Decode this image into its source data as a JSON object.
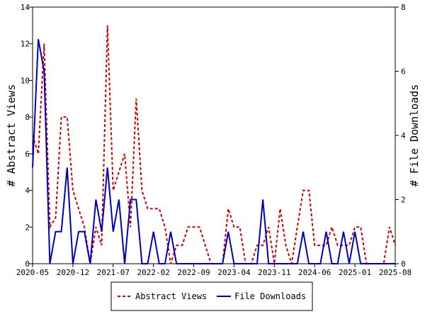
{
  "chart_data": {
    "type": "line",
    "xlabel": "",
    "ylabel": "# Abstract Views",
    "y2label": "# File Downloads",
    "xlim": [
      "2020-05",
      "2025-08"
    ],
    "xticks": [
      "2020-05",
      "2020-12",
      "2021-07",
      "2022-02",
      "2022-09",
      "2023-04",
      "2023-11",
      "2024-06",
      "2025-01",
      "2025-08"
    ],
    "ylim": [
      0,
      14
    ],
    "yticks": [
      0,
      2,
      4,
      6,
      8,
      10,
      12,
      14
    ],
    "y2lim": [
      0,
      8
    ],
    "y2ticks": [
      0,
      2,
      4,
      6,
      8
    ],
    "grid": false,
    "legend_position": "bottom",
    "series": [
      {
        "name": "Abstract Views",
        "axis": "left",
        "color": "#cc0000",
        "style": "dashed",
        "x": [
          "2020-05",
          "2020-06",
          "2020-07",
          "2020-08",
          "2020-09",
          "2020-10",
          "2020-11",
          "2020-12",
          "2021-01",
          "2021-02",
          "2021-03",
          "2021-04",
          "2021-05",
          "2021-06",
          "2021-07",
          "2021-08",
          "2021-09",
          "2021-10",
          "2021-11",
          "2021-12",
          "2022-01",
          "2022-02",
          "2022-03",
          "2022-04",
          "2022-05",
          "2022-06",
          "2022-07",
          "2022-08",
          "2022-09",
          "2022-10",
          "2022-11",
          "2022-12",
          "2023-01",
          "2023-02",
          "2023-03",
          "2023-04",
          "2023-05",
          "2023-06",
          "2023-07",
          "2023-08",
          "2023-09",
          "2023-10",
          "2023-11",
          "2023-12",
          "2024-01",
          "2024-02",
          "2024-03",
          "2024-04",
          "2024-05",
          "2024-06",
          "2024-07",
          "2024-08",
          "2024-09",
          "2024-10",
          "2024-11",
          "2024-12",
          "2025-01",
          "2025-02",
          "2025-03",
          "2025-04",
          "2025-05",
          "2025-06",
          "2025-07",
          "2025-08"
        ],
        "values": [
          7,
          6,
          12,
          2,
          2.5,
          8,
          8,
          4,
          3,
          2,
          0,
          2,
          1,
          13,
          4,
          5,
          6,
          2,
          9,
          4,
          3,
          3,
          3,
          2,
          0,
          1,
          1,
          2,
          2,
          2,
          1,
          0,
          0,
          0,
          3,
          2,
          2,
          0,
          0,
          1,
          1,
          2,
          0,
          3,
          1,
          0,
          2,
          4,
          4,
          1,
          1,
          1,
          2,
          1,
          1,
          1,
          2,
          2,
          0,
          0,
          0,
          0,
          2,
          1
        ]
      },
      {
        "name": "File Downloads",
        "axis": "right",
        "color": "#0000bb",
        "style": "solid",
        "x": [
          "2020-05",
          "2020-06",
          "2020-07",
          "2020-08",
          "2020-09",
          "2020-10",
          "2020-11",
          "2020-12",
          "2021-01",
          "2021-02",
          "2021-03",
          "2021-04",
          "2021-05",
          "2021-06",
          "2021-07",
          "2021-08",
          "2021-09",
          "2021-10",
          "2021-11",
          "2021-12",
          "2022-01",
          "2022-02",
          "2022-03",
          "2022-04",
          "2022-05",
          "2022-06",
          "2022-07",
          "2022-08",
          "2022-09",
          "2022-10",
          "2022-11",
          "2022-12",
          "2023-01",
          "2023-02",
          "2023-03",
          "2023-04",
          "2023-05",
          "2023-06",
          "2023-07",
          "2023-08",
          "2023-09",
          "2023-10",
          "2023-11",
          "2023-12",
          "2024-01",
          "2024-02",
          "2024-03",
          "2024-04",
          "2024-05",
          "2024-06",
          "2024-07",
          "2024-08",
          "2024-09",
          "2024-10",
          "2024-11",
          "2024-12",
          "2025-01",
          "2025-02",
          "2025-03",
          "2025-04",
          "2025-05",
          "2025-06",
          "2025-07",
          "2025-08"
        ],
        "values": [
          3,
          7,
          6,
          0,
          1,
          1,
          3,
          0,
          1,
          1,
          0,
          2,
          1,
          3,
          1,
          2,
          0,
          2,
          2,
          0,
          0,
          1,
          0,
          0,
          1,
          0,
          0,
          0,
          0,
          0,
          0,
          0,
          0,
          0,
          1,
          0,
          0,
          0,
          0,
          0,
          2,
          0,
          0,
          0,
          0,
          0,
          0,
          1,
          0,
          0,
          0,
          1,
          0,
          0,
          1,
          0,
          1,
          0,
          0,
          0,
          0,
          0,
          0,
          0
        ]
      }
    ]
  }
}
